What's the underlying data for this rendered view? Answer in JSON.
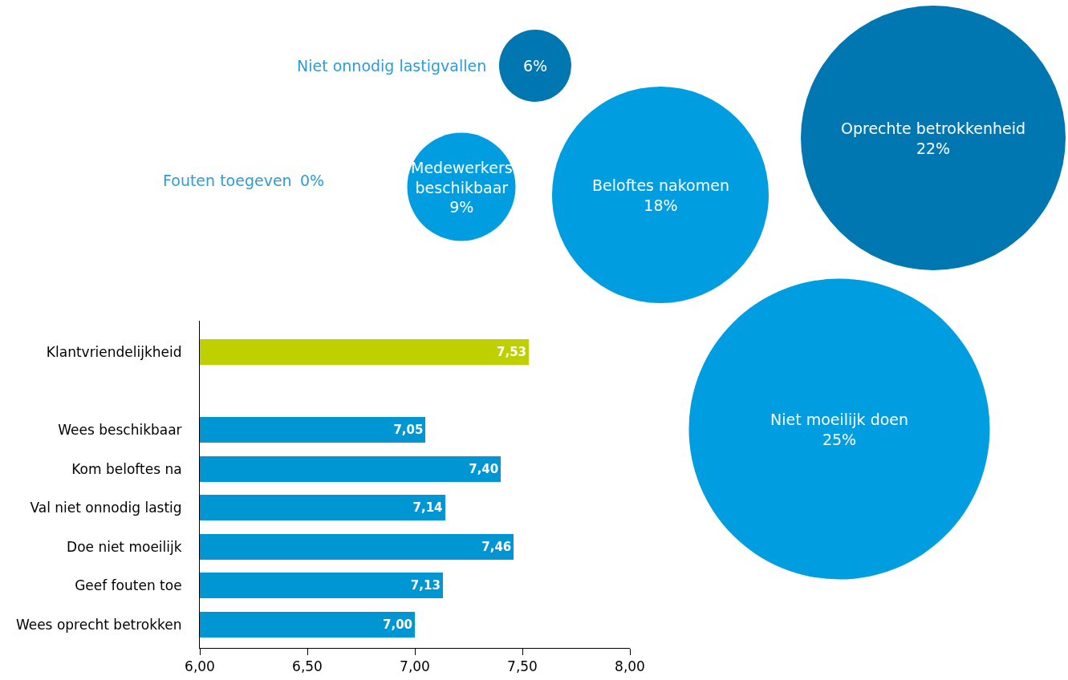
{
  "chart_data": [
    {
      "type": "other",
      "categories": [
        "Niet onnodig lastigvallen",
        "Medewerkers beschikbaar",
        "Beloftes nakomen",
        "Oprechte betrokkenheid",
        "Niet moeilijk doen",
        "Fouten toegeven"
      ],
      "values": [
        6,
        9,
        18,
        22,
        25,
        0
      ],
      "value_labels": [
        "6%",
        "9%",
        "18%",
        "22%",
        "25%",
        "0%"
      ],
      "colors": [
        "#0077b0",
        "#009de0",
        "#009de0",
        "#0077b0",
        "#009de0",
        "#2e9bd6"
      ]
    },
    {
      "type": "bar",
      "orientation": "horizontal",
      "categories": [
        "Klantvriendelijkheid",
        null,
        "Wees beschikbaar",
        "Kom beloftes na",
        "Val niet onnodig lastig",
        "Doe niet moeilijk",
        "Geef fouten toe",
        "Wees oprecht betrokken"
      ],
      "values": [
        7.53,
        null,
        7.05,
        7.4,
        7.14,
        7.46,
        7.13,
        7.0
      ],
      "value_labels": [
        "7,53",
        null,
        "7,05",
        "7,40",
        "7,14",
        "7,46",
        "7,13",
        "7,00"
      ],
      "colors": [
        "#bed000",
        null,
        "#0095d3",
        "#0095d3",
        "#0095d3",
        "#0095d3",
        "#0095d3",
        "#0095d3"
      ],
      "xlim": [
        6,
        8
      ],
      "xticks": [
        {
          "value": 6,
          "label": "6,00"
        },
        {
          "value": 6.5,
          "label": "6,50"
        },
        {
          "value": 7,
          "label": "7,00"
        },
        {
          "value": 7.5,
          "label": "7,50"
        },
        {
          "value": 8,
          "label": "8,00"
        }
      ],
      "grid": false,
      "legend": false
    }
  ]
}
